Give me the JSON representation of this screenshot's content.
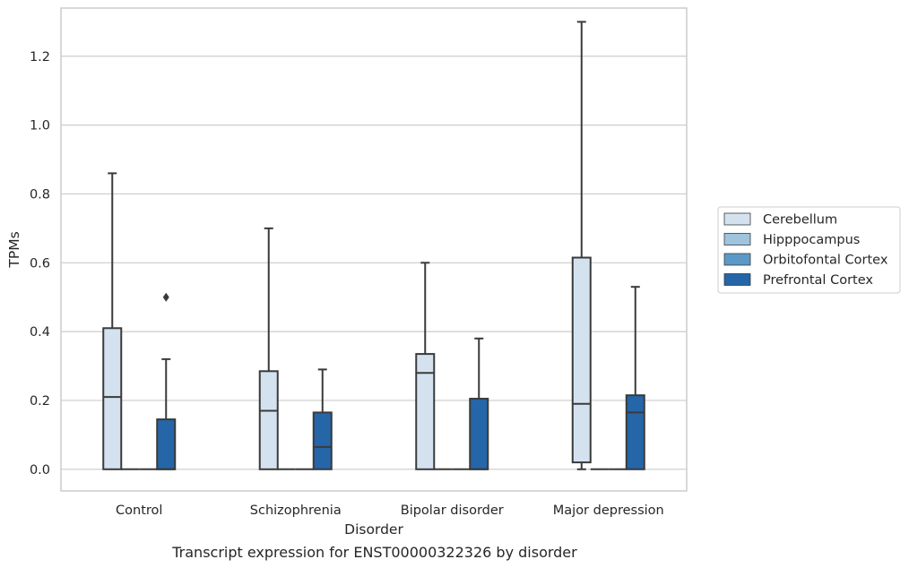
{
  "chart_data": {
    "type": "boxplot",
    "title": "",
    "caption": "Transcript expression for ENST00000322326 by disorder",
    "xlabel": "Disorder",
    "ylabel": "TPMs",
    "ylim": [
      -0.063,
      1.34
    ],
    "yticks": [
      0.0,
      0.2,
      0.4,
      0.6,
      0.8,
      1.0,
      1.2
    ],
    "ytick_labels": [
      "0.0",
      "0.2",
      "0.4",
      "0.6",
      "0.8",
      "1.0",
      "1.2"
    ],
    "grid": true,
    "legend_position": "right",
    "categories": [
      "Control",
      "Schizophrenia",
      "Bipolar disorder",
      "Major depression"
    ],
    "series": [
      {
        "name": "Cerebellum",
        "color": "#d4e2f0",
        "boxes": [
          {
            "whislo": 0.0,
            "q1": 0.0,
            "med": 0.21,
            "q3": 0.41,
            "whishi": 0.86,
            "fliers": []
          },
          {
            "whislo": 0.0,
            "q1": 0.0,
            "med": 0.17,
            "q3": 0.285,
            "whishi": 0.7,
            "fliers": []
          },
          {
            "whislo": 0.0,
            "q1": 0.0,
            "med": 0.28,
            "q3": 0.335,
            "whishi": 0.6,
            "fliers": []
          },
          {
            "whislo": 0.0,
            "q1": 0.02,
            "med": 0.19,
            "q3": 0.615,
            "whishi": 1.3,
            "fliers": []
          }
        ]
      },
      {
        "name": "Hipppocampus",
        "color": "#9ec4de",
        "boxes": [
          {
            "whislo": 0.0,
            "q1": 0.0,
            "med": 0.0,
            "q3": 0.0,
            "whishi": 0.0,
            "fliers": []
          },
          {
            "whislo": 0.0,
            "q1": 0.0,
            "med": 0.0,
            "q3": 0.0,
            "whishi": 0.0,
            "fliers": []
          },
          {
            "whislo": 0.0,
            "q1": 0.0,
            "med": 0.0,
            "q3": 0.0,
            "whishi": 0.0,
            "fliers": []
          },
          {
            "whislo": 0.0,
            "q1": 0.0,
            "med": 0.0,
            "q3": 0.0,
            "whishi": 0.0,
            "fliers": []
          }
        ]
      },
      {
        "name": "Orbitofontal Cortex",
        "color": "#5b9ac8",
        "boxes": [
          {
            "whislo": 0.0,
            "q1": 0.0,
            "med": 0.0,
            "q3": 0.0,
            "whishi": 0.0,
            "fliers": []
          },
          {
            "whislo": 0.0,
            "q1": 0.0,
            "med": 0.0,
            "q3": 0.0,
            "whishi": 0.0,
            "fliers": []
          },
          {
            "whislo": 0.0,
            "q1": 0.0,
            "med": 0.0,
            "q3": 0.0,
            "whishi": 0.0,
            "fliers": []
          },
          {
            "whislo": 0.0,
            "q1": 0.0,
            "med": 0.0,
            "q3": 0.0,
            "whishi": 0.0,
            "fliers": []
          }
        ]
      },
      {
        "name": "Prefrontal Cortex",
        "color": "#2466a8",
        "boxes": [
          {
            "whislo": 0.0,
            "q1": 0.0,
            "med": 0.0,
            "q3": 0.145,
            "whishi": 0.32,
            "fliers": [
              0.5
            ]
          },
          {
            "whislo": 0.0,
            "q1": 0.0,
            "med": 0.065,
            "q3": 0.165,
            "whishi": 0.29,
            "fliers": []
          },
          {
            "whislo": 0.0,
            "q1": 0.0,
            "med": 0.0,
            "q3": 0.205,
            "whishi": 0.38,
            "fliers": []
          },
          {
            "whislo": 0.0,
            "q1": 0.0,
            "med": 0.165,
            "q3": 0.215,
            "whishi": 0.53,
            "fliers": []
          }
        ]
      }
    ]
  }
}
